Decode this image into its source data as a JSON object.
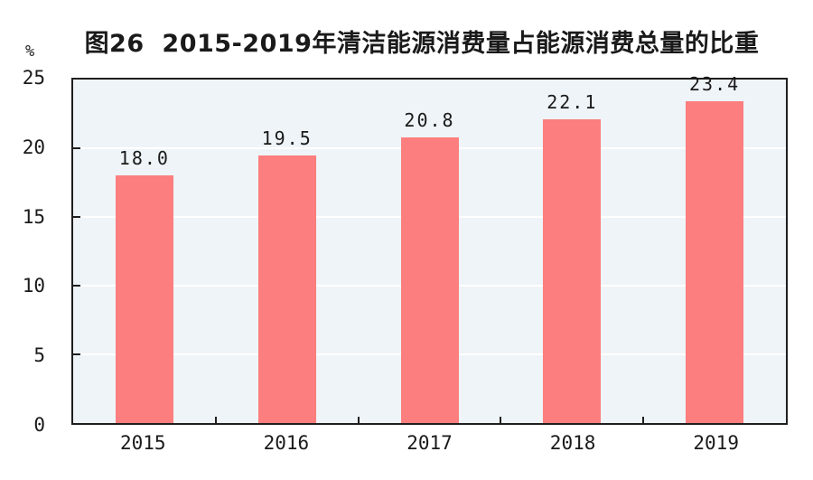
{
  "title": "图26  2015-2019年清洁能源消费量占能源消费总量的比重",
  "unit_label": "%",
  "colors": {
    "bar": "#fc7e7e",
    "plot_background": "#eef4f7",
    "axis": "#1f1f1f",
    "gridline": "#ffffff",
    "text": "#1a1a1a"
  },
  "chart_data": {
    "type": "bar",
    "title": "图26  2015-2019年清洁能源消费量占能源消费总量的比重",
    "categories": [
      "2015",
      "2016",
      "2017",
      "2018",
      "2019"
    ],
    "values": [
      18.0,
      19.5,
      20.8,
      22.1,
      23.4
    ],
    "value_labels": [
      "18.0",
      "19.5",
      "20.8",
      "22.1",
      "23.4"
    ],
    "xlabel": "",
    "ylabel": "%",
    "ylim": [
      0,
      25
    ],
    "yticks": [
      0,
      5,
      10,
      15,
      20,
      25
    ],
    "grid": true,
    "gridline_color": "white",
    "legend_position": "none"
  }
}
